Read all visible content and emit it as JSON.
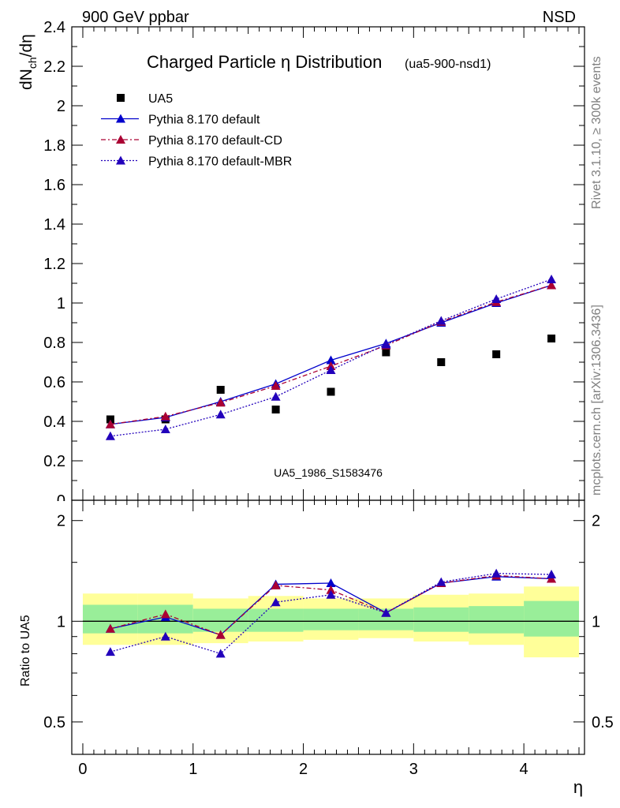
{
  "header": {
    "left": "900 GeV ppbar",
    "right": "NSD"
  },
  "side_labels": {
    "rivet": "Rivet 3.1.10, ≥ 300k events",
    "mcplots": "mcplots.cern.ch [arXiv:1306.3436]"
  },
  "watermark": "UA5_1986_S1583476",
  "chart_data": [
    {
      "type": "scatter",
      "panel": "main",
      "title": "Charged Particle η Distribution",
      "subtitle": "(ua5-900-nsd1)",
      "ylabel": "dN_ch/dη",
      "xlim": [
        -0.1,
        4.55
      ],
      "ylim": [
        0,
        2.4
      ],
      "yticks": [
        0.2,
        0.4,
        0.6,
        0.8,
        1,
        1.2,
        1.4,
        1.6,
        1.8,
        2,
        2.2,
        2.4
      ],
      "ytick_labels": [
        "0.2",
        "0.4",
        "0.6",
        "0.8",
        "1",
        "1.2",
        "1.4",
        "1.6",
        "1.8",
        "2",
        "2.2",
        "2.4"
      ],
      "ytick_zero_label": "0",
      "x": [
        0.25,
        0.75,
        1.25,
        1.75,
        2.25,
        2.75,
        3.25,
        3.75,
        4.25
      ],
      "legend_position": "top-left",
      "series": [
        {
          "name": "UA5",
          "style": "data",
          "color": "#000000",
          "values": [
            0.41,
            0.41,
            0.56,
            0.46,
            0.55,
            0.75,
            0.7,
            0.74,
            0.82
          ]
        },
        {
          "name": "Pythia 8.170 default",
          "style": "solid",
          "color": "#0000cc",
          "values": [
            0.385,
            0.42,
            0.5,
            0.59,
            0.71,
            0.795,
            0.9,
            1.0,
            1.09
          ]
        },
        {
          "name": "Pythia 8.170 default-CD",
          "style": "dashdot",
          "color": "#aa0033",
          "values": [
            0.385,
            0.425,
            0.495,
            0.58,
            0.68,
            0.785,
            0.905,
            1.005,
            1.09
          ]
        },
        {
          "name": "Pythia 8.170 default-MBR",
          "style": "dotted",
          "color": "#2200bb",
          "values": [
            0.325,
            0.36,
            0.435,
            0.525,
            0.66,
            0.79,
            0.91,
            1.02,
            1.12
          ]
        }
      ]
    },
    {
      "type": "line",
      "panel": "ratio",
      "ylabel": "Ratio to UA5",
      "xlabel": "η",
      "xlim": [
        -0.1,
        4.55
      ],
      "ylim_log": [
        0.4,
        2.3
      ],
      "yticks": [
        0.5,
        1,
        2
      ],
      "ytick_labels": [
        "0.5",
        "1",
        "2"
      ],
      "xticks": [
        0,
        1,
        2,
        3,
        4
      ],
      "xtick_labels": [
        "0",
        "1",
        "2",
        "3",
        "4"
      ],
      "bins": [
        [
          0,
          0.5
        ],
        [
          0.5,
          1.0
        ],
        [
          1.0,
          1.5
        ],
        [
          1.5,
          2.0
        ],
        [
          2.0,
          2.5
        ],
        [
          2.5,
          3.0
        ],
        [
          3.0,
          3.5
        ],
        [
          3.5,
          4.0
        ],
        [
          4.0,
          4.5
        ]
      ],
      "band_yellow": [
        [
          0.85,
          1.21
        ],
        [
          0.85,
          1.21
        ],
        [
          0.86,
          1.17
        ],
        [
          0.87,
          1.19
        ],
        [
          0.88,
          1.17
        ],
        [
          0.89,
          1.17
        ],
        [
          0.87,
          1.2
        ],
        [
          0.85,
          1.21
        ],
        [
          0.78,
          1.27
        ]
      ],
      "band_green": [
        [
          0.92,
          1.12
        ],
        [
          0.92,
          1.12
        ],
        [
          0.93,
          1.09
        ],
        [
          0.93,
          1.09
        ],
        [
          0.94,
          1.09
        ],
        [
          0.94,
          1.09
        ],
        [
          0.93,
          1.1
        ],
        [
          0.92,
          1.11
        ],
        [
          0.9,
          1.15
        ]
      ],
      "x": [
        0.25,
        0.75,
        1.25,
        1.75,
        2.25,
        2.75,
        3.25,
        3.75,
        4.25
      ],
      "series": [
        {
          "name": "Pythia 8.170 default",
          "style": "solid",
          "color": "#0000cc",
          "values": [
            0.95,
            1.03,
            0.91,
            1.29,
            1.3,
            1.06,
            1.3,
            1.36,
            1.34
          ]
        },
        {
          "name": "Pythia 8.170 default-CD",
          "style": "dashdot",
          "color": "#aa0033",
          "values": [
            0.95,
            1.05,
            0.91,
            1.28,
            1.24,
            1.06,
            1.3,
            1.37,
            1.34
          ]
        },
        {
          "name": "Pythia 8.170 default-MBR",
          "style": "dotted",
          "color": "#2200bb",
          "values": [
            0.81,
            0.9,
            0.8,
            1.14,
            1.2,
            1.06,
            1.31,
            1.39,
            1.38
          ]
        }
      ]
    }
  ]
}
